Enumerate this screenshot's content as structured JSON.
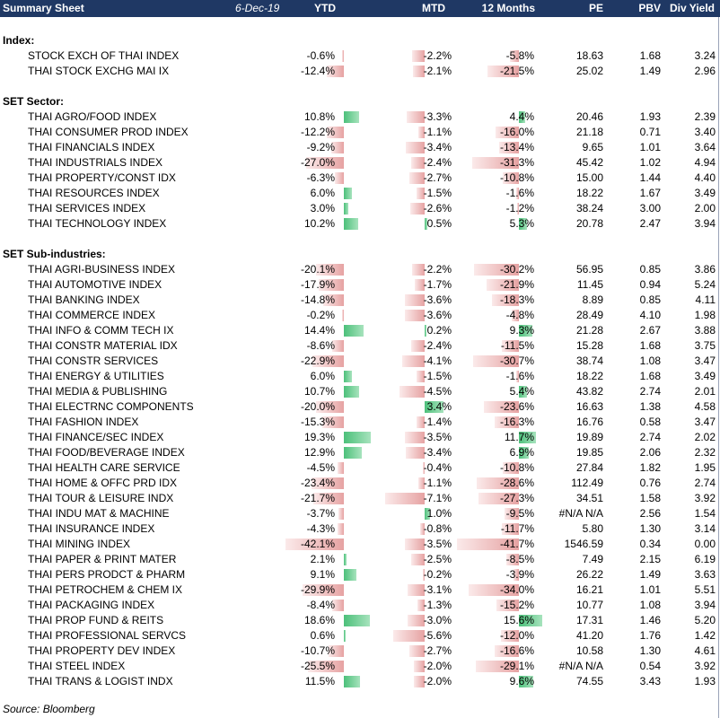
{
  "header": {
    "title": "Summary Sheet",
    "date": "6-Dec-19",
    "columns": [
      "YTD",
      "MTD",
      "12 Months",
      "PE",
      "PBV",
      "Div Yield"
    ]
  },
  "colors": {
    "header_bg": "#1f3864",
    "positive_bar": "#4cc07a",
    "negative_bar": "#e6a2a2"
  },
  "sections": [
    {
      "title": "Index:",
      "rows": [
        {
          "name": "STOCK EXCH OF THAI INDEX",
          "ytd": "-0.6%",
          "mtd": "-2.2%",
          "m12": "-5.8%",
          "pe": "18.63",
          "pbv": "1.68",
          "dy": "3.24"
        },
        {
          "name": "THAI STOCK EXCHG MAI IX",
          "ytd": "-12.4%",
          "mtd": "-2.1%",
          "m12": "-21.5%",
          "pe": "25.02",
          "pbv": "1.49",
          "dy": "2.96"
        }
      ]
    },
    {
      "title": "SET Sector:",
      "rows": [
        {
          "name": "THAI AGRO/FOOD INDEX",
          "ytd": "10.8%",
          "mtd": "-3.3%",
          "m12": "4.4%",
          "pe": "20.46",
          "pbv": "1.93",
          "dy": "2.39"
        },
        {
          "name": "THAI CONSUMER PROD INDEX",
          "ytd": "-12.2%",
          "mtd": "-1.1%",
          "m12": "-16.0%",
          "pe": "21.18",
          "pbv": "0.71",
          "dy": "3.40"
        },
        {
          "name": "THAI FINANCIALS INDEX",
          "ytd": "-9.2%",
          "mtd": "-3.4%",
          "m12": "-13.4%",
          "pe": "9.65",
          "pbv": "1.01",
          "dy": "3.64"
        },
        {
          "name": "THAI INDUSTRIALS INDEX",
          "ytd": "-27.0%",
          "mtd": "-2.4%",
          "m12": "-31.3%",
          "pe": "45.42",
          "pbv": "1.02",
          "dy": "4.94"
        },
        {
          "name": "THAI PROPERTY/CONST IDX",
          "ytd": "-6.3%",
          "mtd": "-2.7%",
          "m12": "-10.8%",
          "pe": "15.00",
          "pbv": "1.44",
          "dy": "4.40"
        },
        {
          "name": "THAI RESOURCES INDEX",
          "ytd": "6.0%",
          "mtd": "-1.5%",
          "m12": "-1.6%",
          "pe": "18.22",
          "pbv": "1.67",
          "dy": "3.49"
        },
        {
          "name": "THAI SERVICES INDEX",
          "ytd": "3.0%",
          "mtd": "-2.6%",
          "m12": "-1.2%",
          "pe": "38.24",
          "pbv": "3.00",
          "dy": "2.00"
        },
        {
          "name": "THAI TECHNOLOGY INDEX",
          "ytd": "10.2%",
          "mtd": "0.5%",
          "m12": "5.3%",
          "pe": "20.78",
          "pbv": "2.47",
          "dy": "3.94"
        }
      ]
    },
    {
      "title": "SET Sub-industries:",
      "rows": [
        {
          "name": "THAI AGRI-BUSINESS INDEX",
          "ytd": "-20.1%",
          "mtd": "-2.2%",
          "m12": "-30.2%",
          "pe": "56.95",
          "pbv": "0.85",
          "dy": "3.86"
        },
        {
          "name": "THAI AUTOMOTIVE INDEX",
          "ytd": "-17.9%",
          "mtd": "-1.7%",
          "m12": "-21.9%",
          "pe": "11.45",
          "pbv": "0.94",
          "dy": "5.24"
        },
        {
          "name": "THAI BANKING INDEX",
          "ytd": "-14.8%",
          "mtd": "-3.6%",
          "m12": "-18.3%",
          "pe": "8.89",
          "pbv": "0.85",
          "dy": "4.11"
        },
        {
          "name": "THAI COMMERCE INDEX",
          "ytd": "-0.2%",
          "mtd": "-3.6%",
          "m12": "-4.8%",
          "pe": "28.49",
          "pbv": "4.10",
          "dy": "1.98"
        },
        {
          "name": "THAI INFO & COMM TECH IX",
          "ytd": "14.4%",
          "mtd": "0.2%",
          "m12": "9.3%",
          "pe": "21.28",
          "pbv": "2.67",
          "dy": "3.88"
        },
        {
          "name": "THAI CONSTR MATERIAL IDX",
          "ytd": "-8.6%",
          "mtd": "-2.4%",
          "m12": "-11.5%",
          "pe": "15.28",
          "pbv": "1.68",
          "dy": "3.75"
        },
        {
          "name": "THAI CONSTR SERVICES",
          "ytd": "-22.9%",
          "mtd": "-4.1%",
          "m12": "-30.7%",
          "pe": "38.74",
          "pbv": "1.08",
          "dy": "3.47"
        },
        {
          "name": "THAI ENERGY & UTILITIES",
          "ytd": "6.0%",
          "mtd": "-1.5%",
          "m12": "-1.6%",
          "pe": "18.22",
          "pbv": "1.68",
          "dy": "3.49"
        },
        {
          "name": "THAI MEDIA & PUBLISHING",
          "ytd": "10.7%",
          "mtd": "-4.5%",
          "m12": "5.4%",
          "pe": "43.82",
          "pbv": "2.74",
          "dy": "2.01"
        },
        {
          "name": "THAI ELECTRNC COMPONENTS",
          "ytd": "-20.0%",
          "mtd": "3.4%",
          "m12": "-23.6%",
          "pe": "16.63",
          "pbv": "1.38",
          "dy": "4.58"
        },
        {
          "name": "THAI FASHION INDEX",
          "ytd": "-15.3%",
          "mtd": "-1.4%",
          "m12": "-16.3%",
          "pe": "16.76",
          "pbv": "0.58",
          "dy": "3.47"
        },
        {
          "name": "THAI FINANCE/SEC INDEX",
          "ytd": "19.3%",
          "mtd": "-3.5%",
          "m12": "11.7%",
          "pe": "19.89",
          "pbv": "2.74",
          "dy": "2.02"
        },
        {
          "name": "THAI FOOD/BEVERAGE INDEX",
          "ytd": "12.9%",
          "mtd": "-3.4%",
          "m12": "6.9%",
          "pe": "19.85",
          "pbv": "2.06",
          "dy": "2.32"
        },
        {
          "name": "THAI HEALTH CARE SERVICE",
          "ytd": "-4.5%",
          "mtd": "-0.4%",
          "m12": "-10.8%",
          "pe": "27.84",
          "pbv": "1.82",
          "dy": "1.95"
        },
        {
          "name": "THAI HOME & OFFC PRD IDX",
          "ytd": "-23.4%",
          "mtd": "-1.1%",
          "m12": "-28.6%",
          "pe": "112.49",
          "pbv": "0.76",
          "dy": "2.74"
        },
        {
          "name": "THAI TOUR & LEISURE INDX",
          "ytd": "-21.7%",
          "mtd": "-7.1%",
          "m12": "-27.3%",
          "pe": "34.51",
          "pbv": "1.58",
          "dy": "3.92"
        },
        {
          "name": "THAI INDU MAT & MACHINE",
          "ytd": "-3.7%",
          "mtd": "1.0%",
          "m12": "-9.5%",
          "pe": "#N/A N/A",
          "pbv": "2.56",
          "dy": "1.54"
        },
        {
          "name": "THAI INSURANCE INDEX",
          "ytd": "-4.3%",
          "mtd": "-0.8%",
          "m12": "-11.7%",
          "pe": "5.80",
          "pbv": "1.30",
          "dy": "3.14"
        },
        {
          "name": "THAI MINING INDEX",
          "ytd": "-42.1%",
          "mtd": "-3.5%",
          "m12": "-41.7%",
          "pe": "1546.59",
          "pbv": "0.34",
          "dy": "0.00"
        },
        {
          "name": "THAI PAPER & PRINT MATER",
          "ytd": "2.1%",
          "mtd": "-2.5%",
          "m12": "-8.5%",
          "pe": "7.49",
          "pbv": "2.15",
          "dy": "6.19"
        },
        {
          "name": "THAI PERS PRODCT & PHARM",
          "ytd": "9.1%",
          "mtd": "-0.2%",
          "m12": "-3.9%",
          "pe": "26.22",
          "pbv": "1.49",
          "dy": "3.63"
        },
        {
          "name": "THAI PETROCHEM & CHEM IX",
          "ytd": "-29.9%",
          "mtd": "-3.1%",
          "m12": "-34.0%",
          "pe": "16.21",
          "pbv": "1.01",
          "dy": "5.51"
        },
        {
          "name": "THAI PACKAGING INDEX",
          "ytd": "-8.4%",
          "mtd": "-1.3%",
          "m12": "-15.2%",
          "pe": "10.77",
          "pbv": "1.08",
          "dy": "3.94"
        },
        {
          "name": "THAI PROP FUND & REITS",
          "ytd": "18.6%",
          "mtd": "-3.0%",
          "m12": "15.6%",
          "pe": "17.31",
          "pbv": "1.46",
          "dy": "5.20"
        },
        {
          "name": "THAI PROFESSIONAL SERVCS",
          "ytd": "0.6%",
          "mtd": "-5.6%",
          "m12": "-12.0%",
          "pe": "41.20",
          "pbv": "1.76",
          "dy": "1.42"
        },
        {
          "name": "THAI PROPERTY DEV INDEX",
          "ytd": "-10.7%",
          "mtd": "-2.7%",
          "m12": "-16.6%",
          "pe": "10.58",
          "pbv": "1.30",
          "dy": "4.61"
        },
        {
          "name": "THAI STEEL INDEX",
          "ytd": "-25.5%",
          "mtd": "-2.0%",
          "m12": "-29.1%",
          "pe": "#N/A N/A",
          "pbv": "0.54",
          "dy": "3.92"
        },
        {
          "name": "THAI TRANS & LOGIST INDX",
          "ytd": "11.5%",
          "mtd": "-2.0%",
          "m12": "9.6%",
          "pe": "74.55",
          "pbv": "3.43",
          "dy": "1.93"
        }
      ]
    }
  ],
  "footer": {
    "source": "Source: Bloomberg"
  }
}
